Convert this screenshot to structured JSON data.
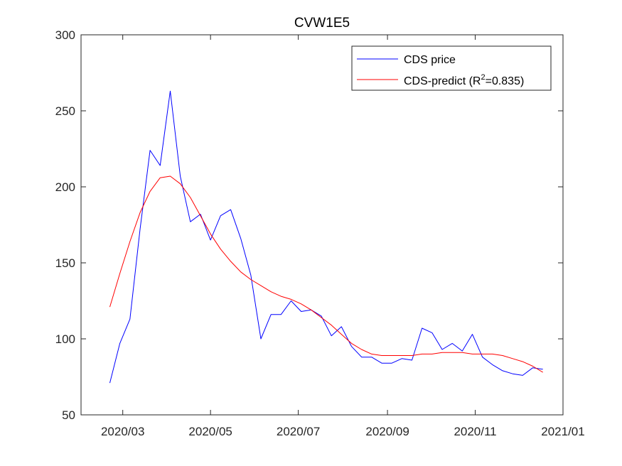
{
  "chart_data": {
    "type": "line",
    "title": "CVW1E5",
    "xlabel": "",
    "ylabel": "",
    "ylim": [
      50,
      300
    ],
    "xlim": [
      "2020-02-01",
      "2021-01-01"
    ],
    "yticks": [
      "50",
      "100",
      "150",
      "200",
      "250",
      "300"
    ],
    "xticks": [
      {
        "date": "2020-03-01",
        "label": "2020/03"
      },
      {
        "date": "2020-05-01",
        "label": "2020/05"
      },
      {
        "date": "2020-07-01",
        "label": "2020/07"
      },
      {
        "date": "2020-09-01",
        "label": "2020/09"
      },
      {
        "date": "2020-11-01",
        "label": "2020/11"
      },
      {
        "date": "2021-01-01",
        "label": "2021/01"
      }
    ],
    "grid": false,
    "legend_position": "top-right",
    "x": [
      "2020-02-21",
      "2020-02-28",
      "2020-03-06",
      "2020-03-13",
      "2020-03-20",
      "2020-03-27",
      "2020-04-03",
      "2020-04-10",
      "2020-04-17",
      "2020-04-24",
      "2020-05-01",
      "2020-05-08",
      "2020-05-15",
      "2020-05-22",
      "2020-05-29",
      "2020-06-05",
      "2020-06-12",
      "2020-06-19",
      "2020-06-26",
      "2020-07-03",
      "2020-07-10",
      "2020-07-17",
      "2020-07-24",
      "2020-07-31",
      "2020-08-07",
      "2020-08-14",
      "2020-08-21",
      "2020-08-28",
      "2020-09-04",
      "2020-09-11",
      "2020-09-18",
      "2020-09-25",
      "2020-10-02",
      "2020-10-09",
      "2020-10-16",
      "2020-10-23",
      "2020-10-30",
      "2020-11-06",
      "2020-11-13",
      "2020-11-20",
      "2020-11-27",
      "2020-12-04",
      "2020-12-11",
      "2020-12-18"
    ],
    "series": [
      {
        "name": "CDS price",
        "color": "#0000ff",
        "values": [
          71,
          97,
          113,
          172,
          224,
          214,
          263,
          207,
          177,
          182,
          165,
          181,
          185,
          166,
          142,
          100,
          116,
          116,
          125,
          118,
          119,
          115,
          102,
          108,
          95,
          88,
          88,
          84,
          84,
          87,
          86,
          107,
          104,
          93,
          97,
          92,
          103,
          88,
          83,
          79,
          77,
          76,
          81,
          80
        ]
      },
      {
        "name": "CDS-predict (R²=0.835)",
        "color": "#ff0000",
        "values": [
          121,
          143,
          164,
          183,
          197,
          206,
          207,
          202,
          193,
          181,
          169,
          159,
          151,
          144,
          139,
          135,
          131,
          128,
          126,
          123,
          119,
          114,
          109,
          103,
          97,
          93,
          90,
          89,
          89,
          89,
          89,
          90,
          90,
          91,
          91,
          91,
          90,
          90,
          90,
          89,
          87,
          85,
          82,
          78
        ]
      }
    ],
    "legend": [
      {
        "label": "CDS price",
        "color": "#0000ff"
      },
      {
        "label": "CDS-predict (R",
        "sup": "2",
        "rest": "=0.835)",
        "color": "#ff0000"
      }
    ]
  }
}
